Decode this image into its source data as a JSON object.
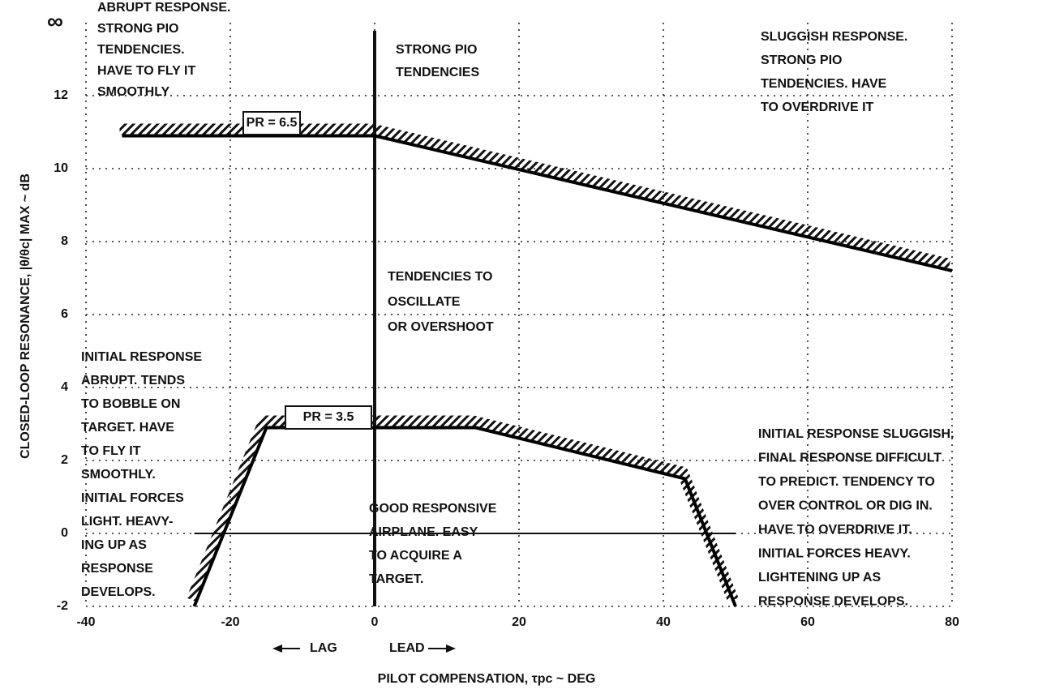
{
  "chart_data": {
    "type": "line",
    "xlabel": "PILOT COMPENSATION, τpc ~ DEG",
    "ylabel": "CLOSED-LOOP RESONANCE, |θ/θc| MAX ~ dB",
    "xlim": [
      -40,
      80
    ],
    "ylim": [
      -2,
      14
    ],
    "xticks": [
      -40,
      -20,
      0,
      20,
      40,
      60,
      80
    ],
    "yticks": [
      -2,
      0,
      2,
      4,
      6,
      8,
      10,
      12,
      {
        "value": 14,
        "label": "∞"
      }
    ],
    "grid": true,
    "series": [
      {
        "name": "PR = 6.5",
        "color": "#000000",
        "x": [
          -35,
          0,
          80
        ],
        "values": [
          10.9,
          10.9,
          7.2
        ]
      },
      {
        "name": "PR = 3.5",
        "color": "#000000",
        "x": [
          -25,
          -15,
          14,
          43,
          50
        ],
        "values": [
          -2,
          2.9,
          2.9,
          1.5,
          -2
        ]
      }
    ],
    "vline": 0,
    "hline": 0,
    "direction_labels": [
      "LAG",
      "LEAD"
    ],
    "annotations": [
      [
        "ABRUPT RESPONSE.",
        "STRONG PIO",
        "TENDENCIES.",
        "HAVE TO FLY IT",
        "SMOOTHLY"
      ],
      [
        "STRONG PIO",
        "TENDENCIES"
      ],
      [
        "SLUGGISH RESPONSE.",
        "STRONG PIO",
        "TENDENCIES. HAVE",
        "TO OVERDRIVE IT"
      ],
      [
        "TENDENCIES TO",
        "OSCILLATE",
        "OR OVERSHOOT"
      ],
      [
        "INITIAL RESPONSE",
        "ABRUPT. TENDS",
        "TO BOBBLE ON",
        "TARGET. HAVE",
        "TO FLY IT",
        "SMOOTHLY.",
        "INITIAL FORCES",
        "LIGHT. HEAVY-",
        "ING UP AS",
        "RESPONSE",
        "DEVELOPS."
      ],
      [
        "GOOD RESPONSIVE",
        "AIRPLANE. EASY",
        "TO ACQUIRE A",
        "TARGET."
      ],
      [
        "INITIAL RESPONSE SLUGGISH.",
        "FINAL RESPONSE DIFFICULT",
        "TO PREDICT. TENDENCY TO",
        "OVER CONTROL OR DIG IN.",
        "HAVE TO OVERDRIVE IT.",
        "INITIAL FORCES HEAVY.",
        "LIGHTENING UP AS",
        "RESPONSE DEVELOPS."
      ]
    ]
  }
}
